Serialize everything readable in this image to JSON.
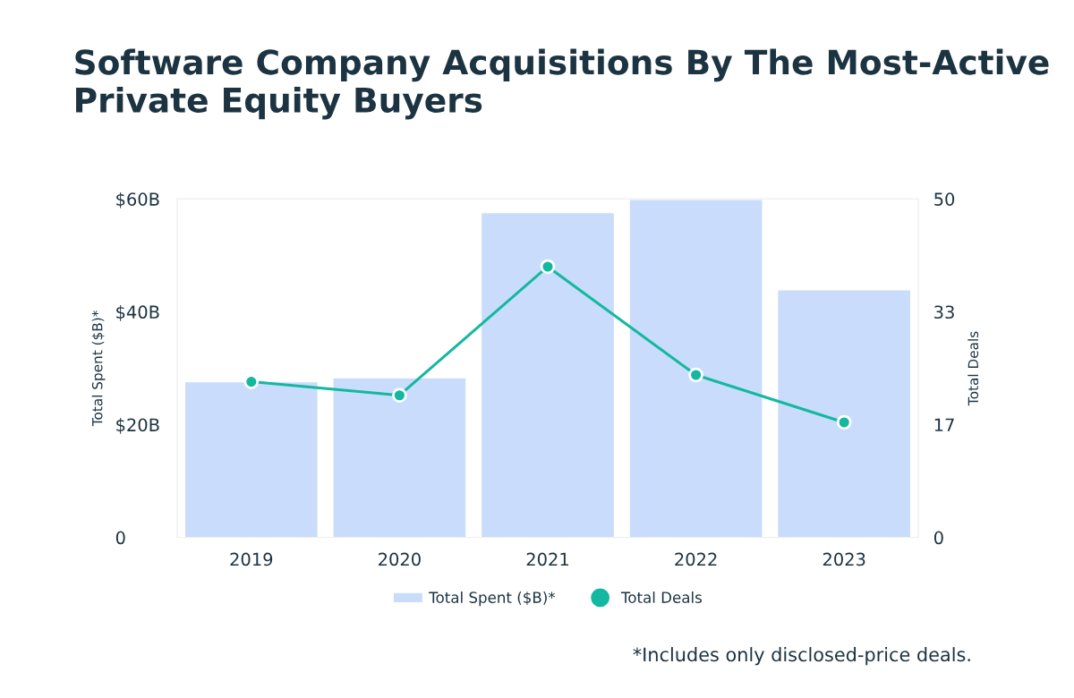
{
  "chart_data": {
    "type": "bar",
    "title": "Software Company Acquisitions By The Most-Active Private Equity Buyers",
    "categories": [
      "2019",
      "2020",
      "2021",
      "2022",
      "2023"
    ],
    "series": [
      {
        "name": "Total Spent ($B)*",
        "color": "#c9dcfb",
        "values": [
          27.6,
          28.3,
          57.6,
          59.9,
          43.9
        ]
      },
      {
        "name": "Total Deals",
        "type": "line",
        "axis": "y2",
        "color": "#14b8a0",
        "values": [
          23,
          21,
          40,
          24,
          17
        ]
      }
    ],
    "ylabel": "Total Spent ($B)*",
    "y2label": "Total Deals",
    "ylim": [
      0,
      60
    ],
    "yticks": [
      {
        "value": 0,
        "label": "0"
      },
      {
        "value": 20,
        "label": "$20B"
      },
      {
        "value": 40,
        "label": "$40B"
      },
      {
        "value": 60,
        "label": "$60B"
      }
    ],
    "y2lim": [
      0,
      50
    ],
    "y2ticks": [
      0,
      {
        "value": 16.67,
        "label": "17"
      },
      {
        "value": 33.33,
        "label": "33"
      },
      50
    ],
    "marker": "circle",
    "grid": false,
    "legend": "bottom",
    "annotations": [
      "*Includes only disclosed-price deals."
    ]
  }
}
